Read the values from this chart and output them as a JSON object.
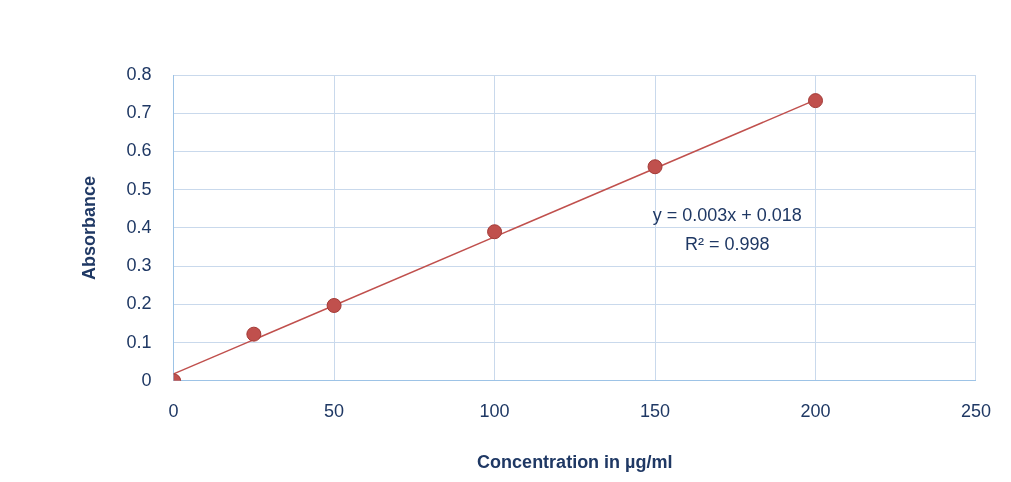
{
  "chart_data": {
    "type": "scatter",
    "xlabel": "Concentration in µg/ml",
    "ylabel": "Absorbance",
    "series": [
      {
        "color": "#c0504d",
        "x": [
          0,
          25,
          50,
          100,
          150,
          200
        ],
        "values": [
          0,
          0.122,
          0.197,
          0.39,
          0.56,
          0.733
        ]
      },
      {
        "type": "line",
        "marker": "none",
        "color": "#c0504d",
        "x": [
          0,
          200
        ],
        "values": [
          0.018,
          0.735
        ]
      }
    ],
    "xlim": [
      0,
      250
    ],
    "xticks": [
      0,
      50,
      100,
      150,
      200,
      250
    ],
    "ylim": [
      0,
      0.8
    ],
    "yticks": [
      0,
      0.1,
      0.2,
      0.3,
      0.4,
      0.5,
      0.6,
      0.7,
      0.8
    ],
    "grid": true,
    "marker": "circle",
    "legend": false,
    "annotations": [
      "y = 0.003x + 0.018",
      "R² = 0.998"
    ]
  }
}
